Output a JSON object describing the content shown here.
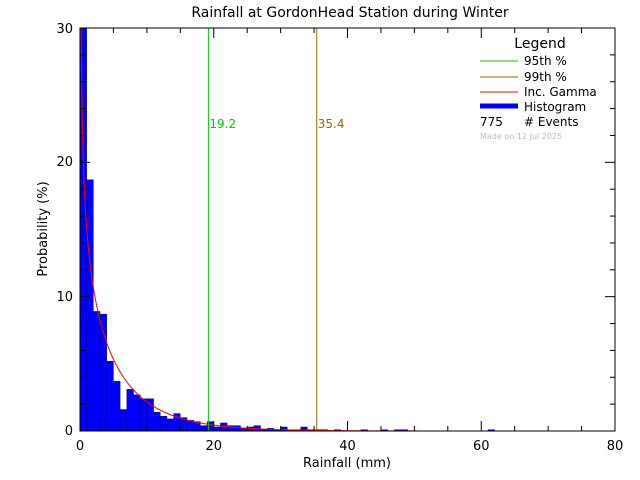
{
  "chart_data": {
    "type": "bar",
    "title": "Rainfall at GordonHead Station during Winter",
    "xlabel": "Rainfall (mm)",
    "ylabel": "Probability (%)",
    "xlim": [
      0,
      80
    ],
    "ylim": [
      0,
      30
    ],
    "xticks": [
      "0",
      "20",
      "40",
      "60",
      "80"
    ],
    "yticks": [
      "0",
      "10",
      "20",
      "30"
    ],
    "bin_width": 1,
    "histogram": {
      "name": "Histogram",
      "color": "#0000ff",
      "bin_starts": [
        0,
        1,
        2,
        3,
        4,
        5,
        6,
        7,
        8,
        9,
        10,
        11,
        12,
        13,
        14,
        15,
        16,
        17,
        18,
        19,
        20,
        21,
        22,
        23,
        24,
        25,
        26,
        27,
        28,
        29,
        30,
        31,
        32,
        33,
        34,
        35,
        36,
        38,
        42,
        45,
        47,
        48,
        61
      ],
      "values": [
        30,
        18.7,
        8.9,
        8.7,
        5.2,
        3.7,
        1.6,
        3.1,
        2.7,
        2.4,
        2.4,
        1.4,
        1.1,
        0.9,
        1.3,
        1.0,
        0.8,
        0.7,
        0.4,
        0.7,
        0.3,
        0.6,
        0.4,
        0.4,
        0.2,
        0.3,
        0.4,
        0.1,
        0.2,
        0.1,
        0.3,
        0.1,
        0.1,
        0.3,
        0.1,
        0.1,
        0.1,
        0.1,
        0.1,
        0.1,
        0.1,
        0.1,
        0.1
      ]
    },
    "gamma_curve": {
      "name": "Inc. Gamma",
      "color": "#ff0000",
      "shape": 0.7,
      "scale": 7.2,
      "peak_percent": 30,
      "peak_x": 0.15
    },
    "percentile_lines": [
      {
        "name": "95th %",
        "x": 19.2,
        "label": "19.2",
        "color": "#00cc00"
      },
      {
        "name": "99th %",
        "x": 35.4,
        "label": "35.4",
        "color": "#996600"
      }
    ],
    "legend": {
      "title": "Legend",
      "placement": "top-right",
      "events_count": "775",
      "events_label": "# Events",
      "made_on": "Made on 12 Jul 2025"
    },
    "grid": false
  }
}
